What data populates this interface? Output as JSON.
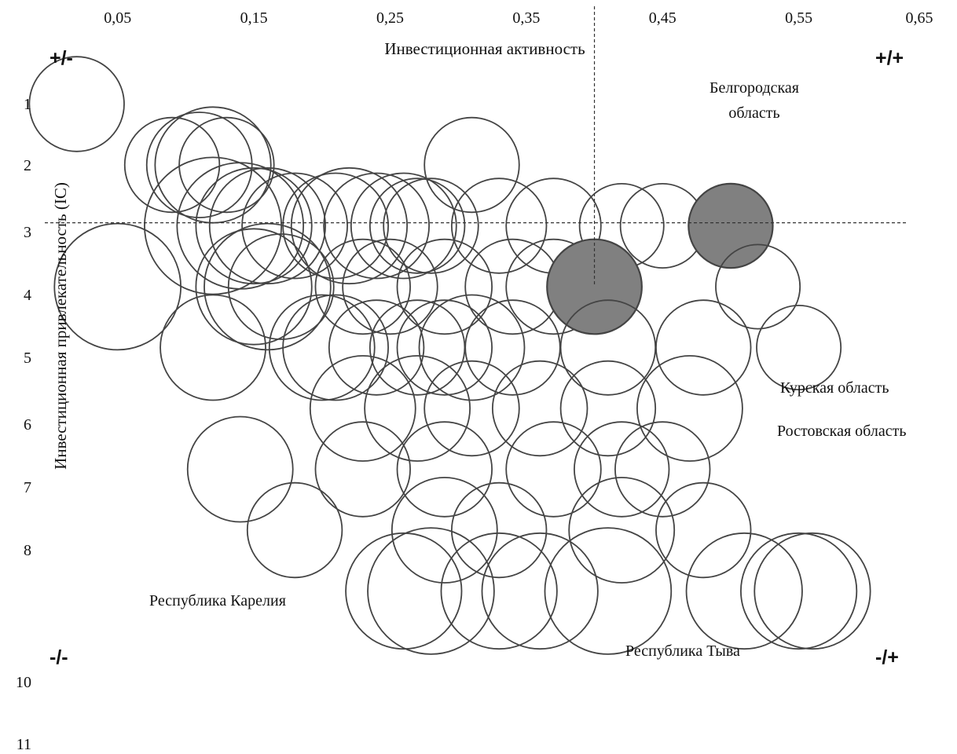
{
  "chart_data": {
    "type": "bubble",
    "title": "",
    "xlabel": "Инвестиционная активность",
    "ylabel": "Инвестиционная привлекательность (IC)",
    "x_ticks": [
      "0,05",
      "0,15",
      "0,25",
      "0,35",
      "0,45",
      "0,55",
      "0,65"
    ],
    "y_ticks": [
      "1",
      "2",
      "3",
      "4",
      "5",
      "6",
      "7",
      "8",
      "10",
      "11"
    ],
    "xlim": [
      0.0,
      0.65
    ],
    "ylim_inverted": [
      0.0,
      11.0
    ],
    "grid": false,
    "reference_lines": {
      "x": 0.4,
      "y": 2.95
    },
    "quadrant_labels": {
      "top_left": "+/-",
      "top_right": "+/+",
      "bottom_left": "-/-",
      "bottom_right": "-/+"
    },
    "annotations": {
      "belgorod_line1": "Белгородская",
      "belgorod_line2": "область",
      "kursk": "Курская область",
      "rostov": "Ростовская область",
      "karelia": "Республика Карелия",
      "tyva": "Республика Тыва"
    },
    "colors": {
      "bubble_stroke": "#444444",
      "highlight_fill": "#808080",
      "reference_line": "#333333"
    },
    "points": [
      {
        "x": 0.02,
        "y": 1.0,
        "size": 0.045
      },
      {
        "x": 0.09,
        "y": 2.0,
        "size": 0.045
      },
      {
        "x": 0.11,
        "y": 2.0,
        "size": 0.05
      },
      {
        "x": 0.12,
        "y": 2.0,
        "size": 0.055
      },
      {
        "x": 0.13,
        "y": 2.0,
        "size": 0.045
      },
      {
        "x": 0.31,
        "y": 2.0,
        "size": 0.045
      },
      {
        "x": 0.12,
        "y": 3.0,
        "size": 0.065
      },
      {
        "x": 0.14,
        "y": 3.0,
        "size": 0.06
      },
      {
        "x": 0.15,
        "y": 3.0,
        "size": 0.055
      },
      {
        "x": 0.16,
        "y": 3.0,
        "size": 0.055
      },
      {
        "x": 0.18,
        "y": 3.0,
        "size": 0.05
      },
      {
        "x": 0.21,
        "y": 3.0,
        "size": 0.05
      },
      {
        "x": 0.22,
        "y": 3.0,
        "size": 0.055
      },
      {
        "x": 0.24,
        "y": 3.0,
        "size": 0.05
      },
      {
        "x": 0.26,
        "y": 3.0,
        "size": 0.05
      },
      {
        "x": 0.27,
        "y": 3.0,
        "size": 0.045
      },
      {
        "x": 0.28,
        "y": 3.0,
        "size": 0.045
      },
      {
        "x": 0.33,
        "y": 3.0,
        "size": 0.045
      },
      {
        "x": 0.37,
        "y": 3.0,
        "size": 0.045
      },
      {
        "x": 0.42,
        "y": 3.0,
        "size": 0.04
      },
      {
        "x": 0.45,
        "y": 3.0,
        "size": 0.04
      },
      {
        "x": 0.5,
        "y": 3.0,
        "size": 0.04,
        "highlighted": true
      },
      {
        "x": 0.05,
        "y": 4.0,
        "size": 0.06
      },
      {
        "x": 0.15,
        "y": 4.0,
        "size": 0.055
      },
      {
        "x": 0.16,
        "y": 4.0,
        "size": 0.06
      },
      {
        "x": 0.17,
        "y": 4.0,
        "size": 0.05
      },
      {
        "x": 0.23,
        "y": 4.0,
        "size": 0.045
      },
      {
        "x": 0.25,
        "y": 4.0,
        "size": 0.045
      },
      {
        "x": 0.29,
        "y": 4.0,
        "size": 0.045
      },
      {
        "x": 0.34,
        "y": 4.0,
        "size": 0.045
      },
      {
        "x": 0.37,
        "y": 4.0,
        "size": 0.045
      },
      {
        "x": 0.4,
        "y": 4.0,
        "size": 0.045,
        "highlighted": true
      },
      {
        "x": 0.52,
        "y": 4.0,
        "size": 0.04
      },
      {
        "x": 0.12,
        "y": 5.0,
        "size": 0.05
      },
      {
        "x": 0.2,
        "y": 5.0,
        "size": 0.05
      },
      {
        "x": 0.21,
        "y": 5.0,
        "size": 0.05
      },
      {
        "x": 0.24,
        "y": 5.0,
        "size": 0.045
      },
      {
        "x": 0.27,
        "y": 5.0,
        "size": 0.045
      },
      {
        "x": 0.29,
        "y": 5.0,
        "size": 0.045
      },
      {
        "x": 0.31,
        "y": 5.0,
        "size": 0.05
      },
      {
        "x": 0.34,
        "y": 5.0,
        "size": 0.045
      },
      {
        "x": 0.41,
        "y": 5.0,
        "size": 0.045
      },
      {
        "x": 0.48,
        "y": 5.0,
        "size": 0.045
      },
      {
        "x": 0.55,
        "y": 5.0,
        "size": 0.04
      },
      {
        "x": 0.23,
        "y": 6.0,
        "size": 0.05
      },
      {
        "x": 0.27,
        "y": 6.0,
        "size": 0.05
      },
      {
        "x": 0.31,
        "y": 6.0,
        "size": 0.045
      },
      {
        "x": 0.36,
        "y": 6.0,
        "size": 0.045
      },
      {
        "x": 0.41,
        "y": 6.0,
        "size": 0.045
      },
      {
        "x": 0.47,
        "y": 6.0,
        "size": 0.05
      },
      {
        "x": 0.14,
        "y": 7.0,
        "size": 0.05
      },
      {
        "x": 0.23,
        "y": 7.0,
        "size": 0.045
      },
      {
        "x": 0.29,
        "y": 7.0,
        "size": 0.045
      },
      {
        "x": 0.37,
        "y": 7.0,
        "size": 0.045
      },
      {
        "x": 0.42,
        "y": 7.0,
        "size": 0.045
      },
      {
        "x": 0.45,
        "y": 7.0,
        "size": 0.045
      },
      {
        "x": 0.18,
        "y": 8.0,
        "size": 0.045
      },
      {
        "x": 0.29,
        "y": 8.0,
        "size": 0.05
      },
      {
        "x": 0.33,
        "y": 8.0,
        "size": 0.045
      },
      {
        "x": 0.42,
        "y": 8.0,
        "size": 0.05
      },
      {
        "x": 0.48,
        "y": 8.0,
        "size": 0.045
      },
      {
        "x": 0.26,
        "y": 9.0,
        "size": 0.055
      },
      {
        "x": 0.28,
        "y": 9.0,
        "size": 0.06
      },
      {
        "x": 0.33,
        "y": 9.0,
        "size": 0.055
      },
      {
        "x": 0.36,
        "y": 9.0,
        "size": 0.055
      },
      {
        "x": 0.41,
        "y": 9.0,
        "size": 0.06
      },
      {
        "x": 0.51,
        "y": 9.0,
        "size": 0.055
      },
      {
        "x": 0.55,
        "y": 9.0,
        "size": 0.055
      },
      {
        "x": 0.56,
        "y": 9.0,
        "size": 0.055
      }
    ]
  }
}
